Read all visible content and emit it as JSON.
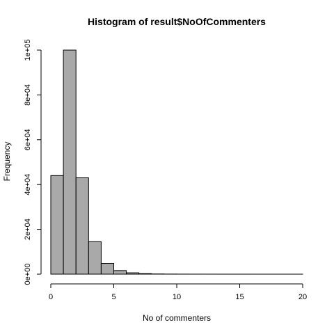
{
  "chart_data": {
    "type": "bar",
    "title": "Histogram of result$NoOfCommenters",
    "xlabel": "No of commenters",
    "ylabel": "Frequency",
    "bin_width": 1,
    "bins": [
      {
        "start": 0,
        "end": 1,
        "count": 44000
      },
      {
        "start": 1,
        "end": 2,
        "count": 100000
      },
      {
        "start": 2,
        "end": 3,
        "count": 43000
      },
      {
        "start": 3,
        "end": 4,
        "count": 14500
      },
      {
        "start": 4,
        "end": 5,
        "count": 4800
      },
      {
        "start": 5,
        "end": 6,
        "count": 1600
      },
      {
        "start": 6,
        "end": 7,
        "count": 600
      },
      {
        "start": 7,
        "end": 8,
        "count": 250
      },
      {
        "start": 8,
        "end": 9,
        "count": 100
      },
      {
        "start": 9,
        "end": 10,
        "count": 50
      },
      {
        "start": 10,
        "end": 11,
        "count": 25
      },
      {
        "start": 11,
        "end": 12,
        "count": 15
      },
      {
        "start": 12,
        "end": 13,
        "count": 10
      },
      {
        "start": 13,
        "end": 14,
        "count": 6
      },
      {
        "start": 14,
        "end": 15,
        "count": 4
      },
      {
        "start": 15,
        "end": 16,
        "count": 3
      },
      {
        "start": 16,
        "end": 17,
        "count": 2
      },
      {
        "start": 17,
        "end": 18,
        "count": 2
      },
      {
        "start": 18,
        "end": 19,
        "count": 1
      },
      {
        "start": 19,
        "end": 20,
        "count": 1
      }
    ],
    "xlim": [
      0,
      20
    ],
    "ylim": [
      0,
      100000
    ],
    "x_ticks": [
      0,
      5,
      10,
      15,
      20
    ],
    "x_tick_labels": [
      "0",
      "5",
      "10",
      "15",
      "20"
    ],
    "y_ticks": [
      0,
      20000,
      40000,
      60000,
      80000,
      100000
    ],
    "y_tick_labels": [
      "0e+00",
      "2e+04",
      "4e+04",
      "6e+04",
      "8e+04",
      "1e+05"
    ],
    "bar_fill": "#a9a9a9",
    "bar_stroke": "#000000",
    "grid": false,
    "legend": "none"
  }
}
